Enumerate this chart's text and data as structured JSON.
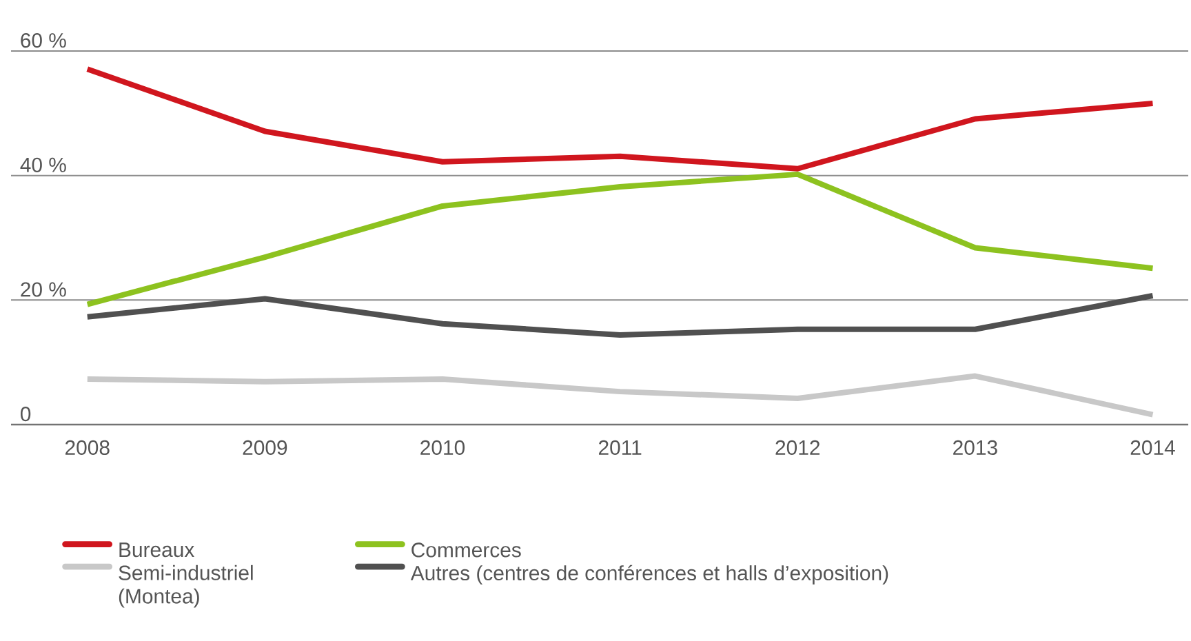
{
  "chart_data": {
    "type": "line",
    "categories": [
      "2008",
      "2009",
      "2010",
      "2011",
      "2012",
      "2013",
      "2014"
    ],
    "series": [
      {
        "name": "Bureaux",
        "color": "#d0161e",
        "values": [
          57.1,
          47.1,
          42.2,
          43.1,
          41.1,
          49.1,
          51.6
        ]
      },
      {
        "name": "Commerces",
        "color": "#8dc21f",
        "values": [
          19.3,
          26.9,
          35.1,
          38.2,
          40.2,
          28.4,
          25.1
        ]
      },
      {
        "name": "Semi-industriel (Montea)",
        "color": "#c8c8c8",
        "values": [
          7.3,
          6.9,
          7.3,
          5.3,
          4.2,
          7.8,
          1.6
        ]
      },
      {
        "name": "Autres (centres de conférences et halls d’exposition)",
        "color": "#505050",
        "values": [
          17.3,
          20.2,
          16.2,
          14.4,
          15.3,
          15.3,
          20.7
        ]
      }
    ],
    "ylim": [
      0,
      60
    ],
    "yticks": [
      {
        "value": 0,
        "label": "0"
      },
      {
        "value": 20,
        "label": "20 %"
      },
      {
        "value": 40,
        "label": "40 %"
      },
      {
        "value": 60,
        "label": "60 %"
      }
    ],
    "grid": "y",
    "legend": "bottom",
    "marker": "none",
    "line_style": "solid"
  }
}
